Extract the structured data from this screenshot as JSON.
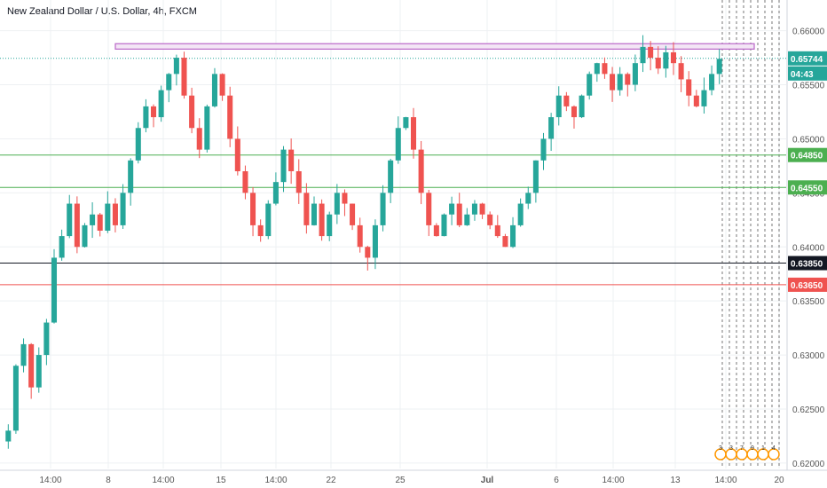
{
  "chart_title": "New Zealand Dollar / U.S. Dollar, 4h, FXCM",
  "countdown": "04:43",
  "session_markers": [
    "3",
    "3",
    "7",
    "9",
    "1",
    "4"
  ],
  "colors": {
    "up": "#26a69a",
    "down": "#ef5350",
    "support": "#4caf50",
    "resistance_band": "#ce93d8",
    "red_level": "#ef5350",
    "black_level": "#131722",
    "grid": "#eef0f3"
  },
  "chart_data": {
    "type": "candlestick",
    "title": "New Zealand Dollar / U.S. Dollar, 4h, FXCM",
    "ylim": [
      0.6195,
      0.6612
    ],
    "y_ticks": [
      "0.66000",
      "0.65500",
      "0.65000",
      "0.64500",
      "0.64000",
      "0.63500",
      "0.63000",
      "0.62500",
      "0.62000"
    ],
    "x_ticks": [
      "14:00",
      "8",
      "14:00",
      "15",
      "14:00",
      "22",
      "25",
      "Jul",
      "6",
      "14:00",
      "13",
      "14:00",
      "20"
    ],
    "current_price": "0.65744",
    "horizontal_levels": [
      {
        "price": "0.64850",
        "color": "green"
      },
      {
        "price": "0.64550",
        "color": "green"
      },
      {
        "price": "0.63850",
        "color": "black"
      },
      {
        "price": "0.63650",
        "color": "red"
      }
    ],
    "resistance_zone": [
      0.6583,
      0.6588
    ],
    "grid": true,
    "price_path": [
      0.622,
      0.623,
      0.629,
      0.631,
      0.627,
      0.63,
      0.633,
      0.639,
      0.641,
      0.644,
      0.64,
      0.642,
      0.643,
      0.6415,
      0.644,
      0.642,
      0.645,
      0.648,
      0.651,
      0.653,
      0.652,
      0.6545,
      0.656,
      0.6575,
      0.654,
      0.651,
      0.649,
      0.653,
      0.656,
      0.654,
      0.65,
      0.647,
      0.645,
      0.642,
      0.641,
      0.644,
      0.646,
      0.649,
      0.647,
      0.645,
      0.642,
      0.644,
      0.641,
      0.643,
      0.645,
      0.644,
      0.642,
      0.64,
      0.639,
      0.642,
      0.645,
      0.648,
      0.651,
      0.652,
      0.649,
      0.645,
      0.642,
      0.641,
      0.643,
      0.644,
      0.642,
      0.643,
      0.644,
      0.643,
      0.642,
      0.641,
      0.64,
      0.642,
      0.644,
      0.645,
      0.648,
      0.65,
      0.652,
      0.654,
      0.653,
      0.652,
      0.654,
      0.656,
      0.657,
      0.656,
      0.6545,
      0.656,
      0.655,
      0.657,
      0.6585,
      0.6575,
      0.6565,
      0.658,
      0.657,
      0.6555,
      0.654,
      0.653,
      0.6545,
      0.656,
      0.6574
    ]
  }
}
